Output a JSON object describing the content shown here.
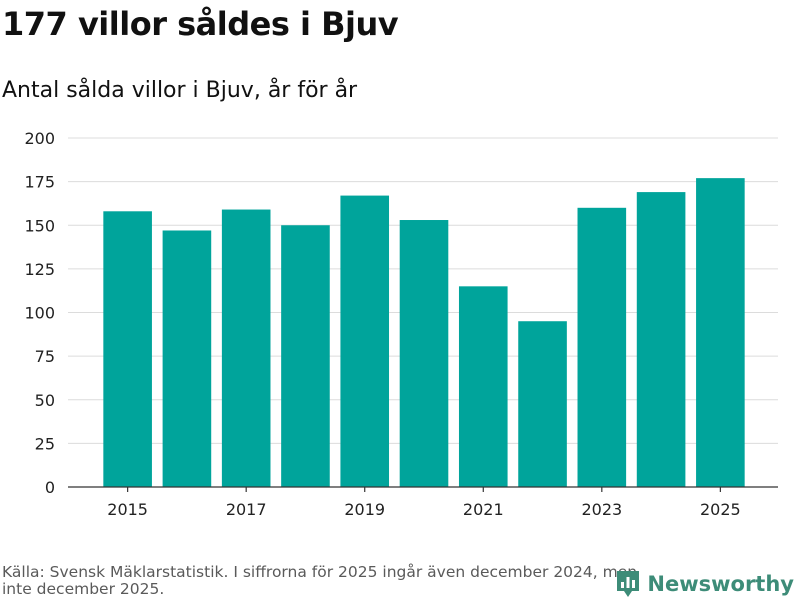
{
  "header": {
    "title": "177 villor såldes i Bjuv",
    "subtitle": "Antal sålda villor i Bjuv, år för år"
  },
  "chart_data": {
    "type": "bar",
    "title": "177 villor såldes i Bjuv",
    "subtitle": "Antal sålda villor i Bjuv, år för år",
    "categories": [
      "2015",
      "2016",
      "2017",
      "2018",
      "2019",
      "2020",
      "2021",
      "2022",
      "2023",
      "2024",
      "2025"
    ],
    "values": [
      158,
      147,
      159,
      150,
      167,
      153,
      115,
      95,
      160,
      169,
      177
    ],
    "x_tick_labels": [
      "2015",
      "2017",
      "2019",
      "2021",
      "2023",
      "2025"
    ],
    "y_ticks": [
      0,
      25,
      50,
      75,
      100,
      125,
      150,
      175,
      200
    ],
    "ylim": [
      0,
      200
    ],
    "xlabel": "",
    "ylabel": "",
    "grid": true,
    "bar_color": "#00a49b"
  },
  "footer": {
    "source": "Källa: Svensk Mäklarstatistik. I siffrorna för 2025 ingår även december 2024, men inte december 2025."
  },
  "brand": {
    "name": "Newsworthy",
    "icon": "newsworthy-logo-icon",
    "color": "#3d8c78"
  }
}
